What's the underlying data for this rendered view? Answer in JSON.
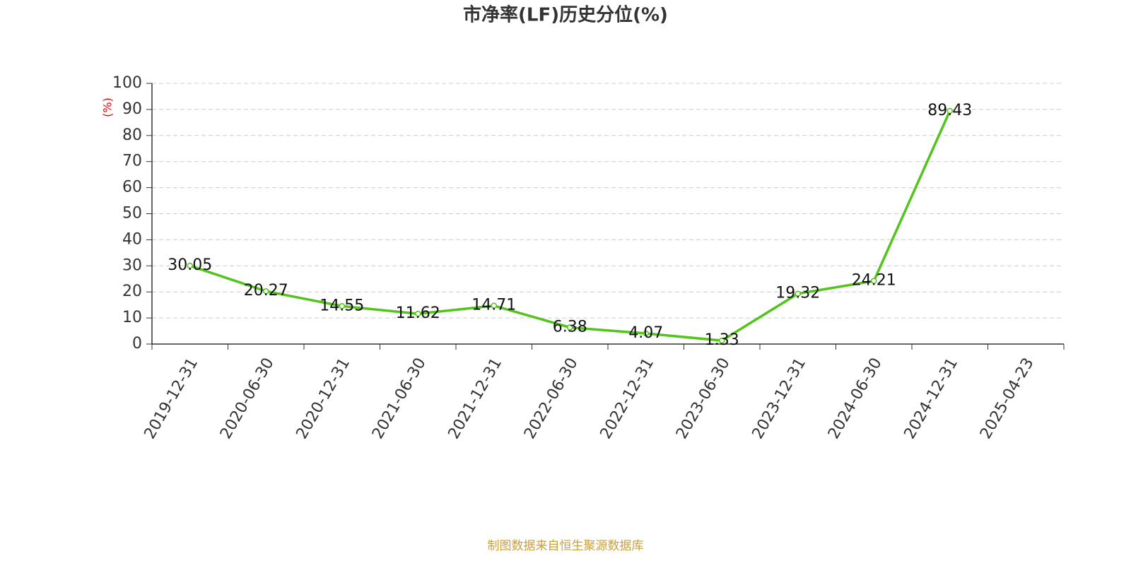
{
  "chart_data": {
    "type": "line",
    "title": "市净率(LF)历史分位(%)",
    "y_label": "(%)",
    "source": "制图数据来自恒生聚源数据库",
    "categories": [
      "2019-12-31",
      "2020-06-30",
      "2020-12-31",
      "2021-06-30",
      "2021-12-31",
      "2022-06-30",
      "2022-12-31",
      "2023-06-30",
      "2023-12-31",
      "2024-06-30",
      "2024-12-31",
      "2025-04-23"
    ],
    "series": [
      {
        "name": "市净率(LF)历史分位",
        "color": "#52c41a",
        "values": [
          30.05,
          20.27,
          14.55,
          11.62,
          14.71,
          6.38,
          4.07,
          1.33,
          19.32,
          24.21,
          89.43,
          null
        ]
      }
    ],
    "ylim": [
      0,
      100
    ],
    "yticks": [
      0,
      10,
      20,
      30,
      40,
      50,
      60,
      70,
      80,
      90,
      100
    ],
    "grid": true
  }
}
